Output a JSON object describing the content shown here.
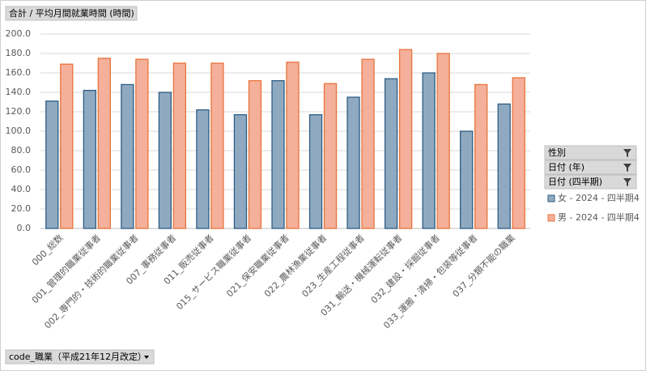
{
  "chart_data": {
    "type": "bar",
    "categories": [
      "000_総数",
      "001_管理的職業従事者",
      "002_専門的・技術的職業従事者",
      "007_事務従事者",
      "011_販売従事者",
      "015_サービス職業従事者",
      "021_保安職業従事者",
      "022_農林漁業従事者",
      "023_生産工程従事者",
      "031_輸送・機械運転従事者",
      "032_建設・採掘従事者",
      "033_運搬・清掃・包装等従事者",
      "037_分類不能の職業"
    ],
    "series": [
      {
        "name": "女 - 2024 - 四半期4",
        "color": "#8fa9c0",
        "values": [
          131,
          142,
          148,
          140,
          122,
          117,
          152,
          117,
          135,
          154,
          160,
          100,
          128
        ]
      },
      {
        "name": "男 - 2024 - 四半期4",
        "color": "#f4b09a",
        "values": [
          169,
          175,
          174,
          170,
          170,
          152,
          171,
          149,
          174,
          184,
          180,
          148,
          155
        ]
      }
    ],
    "ylim": [
      0,
      200
    ],
    "yticks": [
      {
        "value": 0,
        "label": "0.0"
      },
      {
        "value": 20,
        "label": "20.0"
      },
      {
        "value": 40,
        "label": "40.0"
      },
      {
        "value": 60,
        "label": "60.0"
      },
      {
        "value": 80,
        "label": "80.0"
      },
      {
        "value": 100,
        "label": "100.0"
      },
      {
        "value": 120,
        "label": "120.0"
      },
      {
        "value": 140,
        "label": "140.0"
      },
      {
        "value": 160,
        "label": "160.0"
      },
      {
        "value": 180,
        "label": "180.0"
      },
      {
        "value": 200,
        "label": "200.0"
      }
    ],
    "grid": true,
    "legend": "right"
  },
  "field_buttons": {
    "value": "合計 / 平均月間就業時間 (時間)",
    "filters": [
      "性別",
      "日付 (年)",
      "日付 (四半期)"
    ],
    "axis": "code_職業（平成21年12月改定）"
  }
}
